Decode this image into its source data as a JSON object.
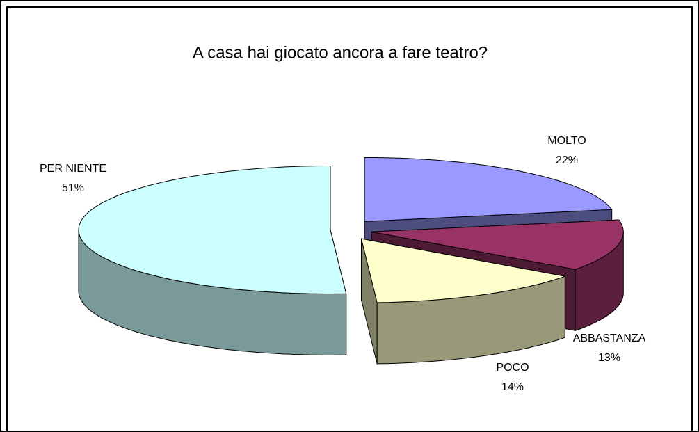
{
  "chart_data": {
    "type": "pie",
    "title": "A casa hai giocato ancora a fare teatro?",
    "categories": [
      "MOLTO",
      "ABBASTANZA",
      "POCO",
      "PER NIENTE"
    ],
    "values": [
      22,
      13,
      14,
      51
    ],
    "value_labels": [
      "22%",
      "13%",
      "14%",
      "51%"
    ],
    "colors": [
      "#9999ff",
      "#993366",
      "#ffffcc",
      "#ccffff"
    ]
  }
}
